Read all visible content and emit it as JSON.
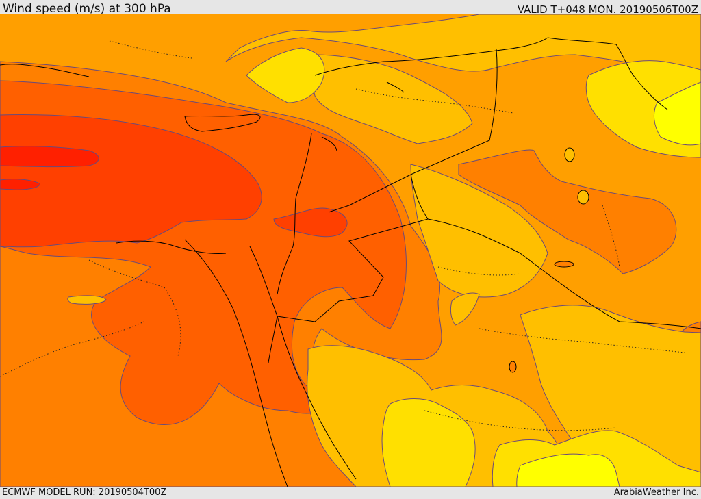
{
  "header": {
    "title": "Wind speed (m/s) at 300 hPa",
    "valid": "VALID T+048 MON. 20190506T00Z"
  },
  "footer": {
    "model_run": "ECMWF MODEL RUN: 20190504T00Z",
    "brand": "ArabiaWeather Inc."
  },
  "colors": {
    "level_1": "#ffff00",
    "level_2": "#ffe000",
    "level_3": "#ffbf00",
    "level_4": "#ff9f00",
    "level_5": "#ff8000",
    "level_6": "#ff6000",
    "level_7": "#ff4000",
    "level_8": "#ff2000",
    "contour": "#6a4a7a",
    "border": "#000000"
  },
  "map": {
    "field": "wind speed",
    "units": "m/s",
    "pressure_level": "300 hPa",
    "region": "Eastern Mediterranean / Levant / Iraq / northern Arabia"
  }
}
